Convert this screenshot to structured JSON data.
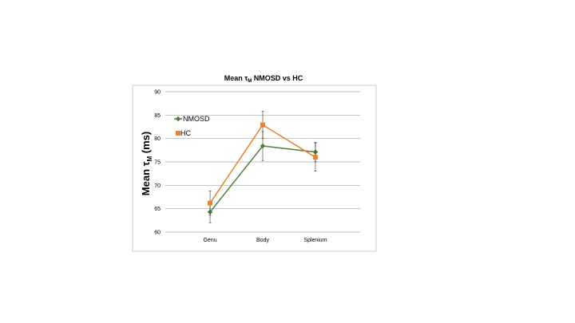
{
  "chart_data": {
    "type": "line",
    "title": "Mean τ",
    "title_subscript": "M",
    "title_rest": " NMOSD vs HC",
    "ylabel": "Mean  τ",
    "ylabel_subscript": "M",
    "ylabel_unit": "  (ms)",
    "xlabel": "",
    "ylim": [
      60,
      90
    ],
    "ytick_step": 5,
    "yticks": [
      "60",
      "65",
      "70",
      "75",
      "80",
      "85",
      "90"
    ],
    "grid": true,
    "legend_position": "top-left",
    "categories": [
      "Genu",
      "Body",
      "Splenium"
    ],
    "series": [
      {
        "name": "NMOSD",
        "color": "#4e7f3b",
        "marker": "diamond",
        "values": [
          64.3,
          78.4,
          77.1
        ],
        "error": [
          2.3,
          3.1,
          2.1
        ]
      },
      {
        "name": "HC",
        "color": "#e8822d",
        "marker": "square",
        "values": [
          66.2,
          82.9,
          76.0
        ],
        "error": [
          2.6,
          2.9,
          3.0
        ]
      }
    ]
  }
}
